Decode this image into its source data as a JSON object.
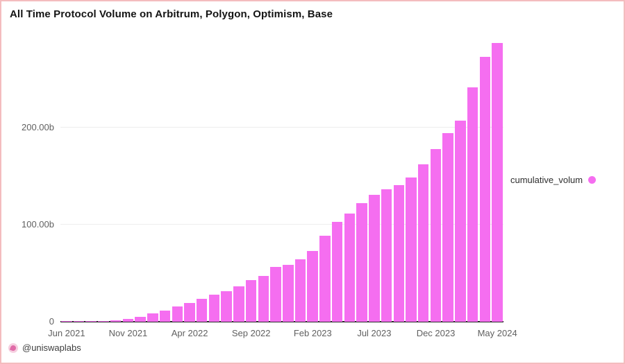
{
  "title": "All Time Protocol Volume on Arbitrum, Polygon, Optimism, Base",
  "legend": {
    "label": "cumulative_volum",
    "dot_color": "#f56ef0"
  },
  "footer": {
    "handle": "@uniswaplabs",
    "icon": "uniswaplabs-logo-icon"
  },
  "colors": {
    "bar": "#f56ef0",
    "frame_border": "#f4bcbe",
    "gridline": "#ededed",
    "axis_line": "#2a2a2a",
    "tick_text": "#606060",
    "title_text": "#141414"
  },
  "chart_data": {
    "type": "bar",
    "title": "All Time Protocol Volume on Arbitrum, Polygon, Optimism, Base",
    "series_name": "cumulative_volum",
    "unit": "billions USD",
    "bar_color": "#f56ef0",
    "grid": true,
    "legend_position": "right",
    "ylim": [
      0,
      293
    ],
    "yticks": [
      {
        "value": 0,
        "label": "0"
      },
      {
        "value": 100,
        "label": "100.00b"
      },
      {
        "value": 200,
        "label": "200.00b"
      }
    ],
    "xtick_indices": [
      0,
      5,
      10,
      15,
      20,
      25,
      30,
      35
    ],
    "xtick_labels": [
      "Jun 2021",
      "Nov 2021",
      "Apr 2022",
      "Sep 2022",
      "Feb 2023",
      "Jul 2023",
      "Dec 2023",
      "May 2024"
    ],
    "categories": [
      "Jun 2021",
      "Jul 2021",
      "Aug 2021",
      "Sep 2021",
      "Oct 2021",
      "Nov 2021",
      "Dec 2021",
      "Jan 2022",
      "Feb 2022",
      "Mar 2022",
      "Apr 2022",
      "May 2022",
      "Jun 2022",
      "Jul 2022",
      "Aug 2022",
      "Sep 2022",
      "Oct 2022",
      "Nov 2022",
      "Dec 2022",
      "Jan 2023",
      "Feb 2023",
      "Mar 2023",
      "Apr 2023",
      "May 2023",
      "Jun 2023",
      "Jul 2023",
      "Aug 2023",
      "Sep 2023",
      "Oct 2023",
      "Nov 2023",
      "Dec 2023",
      "Jan 2024",
      "Feb 2024",
      "Mar 2024",
      "Apr 2024",
      "May 2024"
    ],
    "values": [
      0.02,
      0.06,
      0.2,
      0.5,
      1.4,
      2.7,
      5.3,
      8.6,
      11.6,
      15.5,
      19.1,
      23.4,
      28.1,
      31.2,
      36.6,
      42.6,
      47.1,
      56.2,
      58.6,
      64.1,
      72.9,
      88.4,
      102.6,
      111.4,
      122.4,
      130.7,
      136.6,
      140.7,
      149.0,
      162.0,
      177.6,
      194.3,
      207.4,
      241.4,
      272.9,
      287.6
    ]
  }
}
